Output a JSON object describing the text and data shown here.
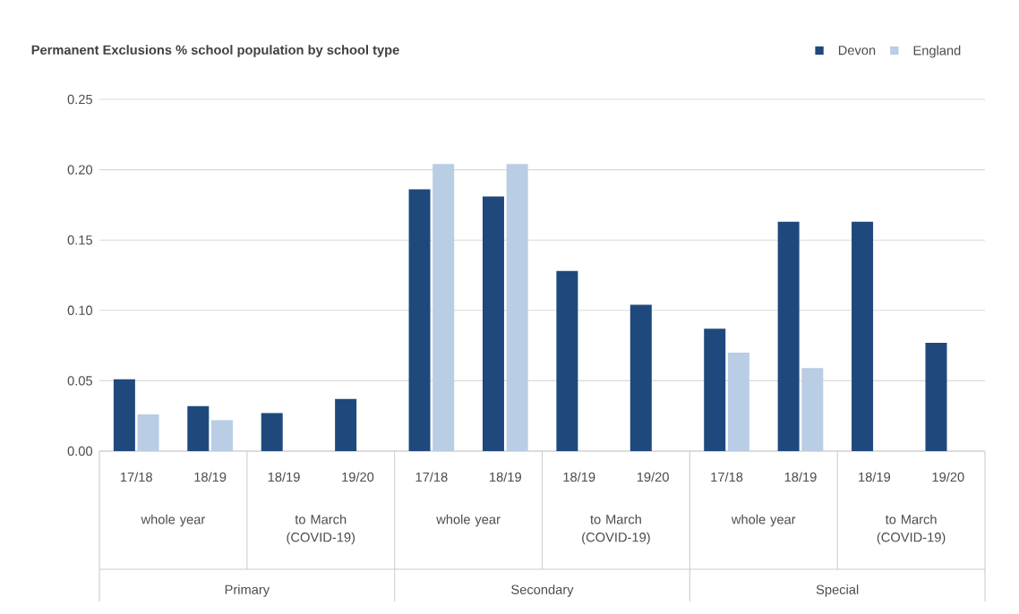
{
  "chart_data": {
    "type": "bar",
    "title": "Permanent Exclusions % school population by school type",
    "categories": [
      "17/18",
      "18/19",
      "18/19",
      "19/20",
      "17/18",
      "18/19",
      "18/19",
      "19/20",
      "17/18",
      "18/19",
      "18/19",
      "19/20"
    ],
    "series": [
      {
        "name": "Devon",
        "color": "#1f497d",
        "values": [
          0.051,
          0.032,
          0.027,
          0.037,
          0.186,
          0.181,
          0.128,
          0.104,
          0.087,
          0.163,
          0.163,
          0.077
        ]
      },
      {
        "name": "England",
        "color": "#b9cde5",
        "values": [
          0.026,
          0.022,
          null,
          null,
          0.204,
          0.204,
          null,
          null,
          0.07,
          0.059,
          null,
          null
        ]
      }
    ],
    "ylim": [
      0,
      0.25
    ],
    "yticks": [
      {
        "value": 0,
        "label": "0.00"
      },
      {
        "value": 0.05,
        "label": "0.05"
      },
      {
        "value": 0.1,
        "label": "0.10"
      },
      {
        "value": 0.15,
        "label": "0.15"
      },
      {
        "value": 0.2,
        "label": "0.20"
      },
      {
        "value": 0.25,
        "label": "0.25"
      }
    ],
    "grid": "y",
    "legend": "top right",
    "annotations": [
      "whole year",
      "to March (COVID-19)",
      "whole year",
      "to March (COVID-19)",
      "whole year",
      "to March (COVID-19)",
      "Primary",
      "Secondary",
      "Special"
    ]
  }
}
